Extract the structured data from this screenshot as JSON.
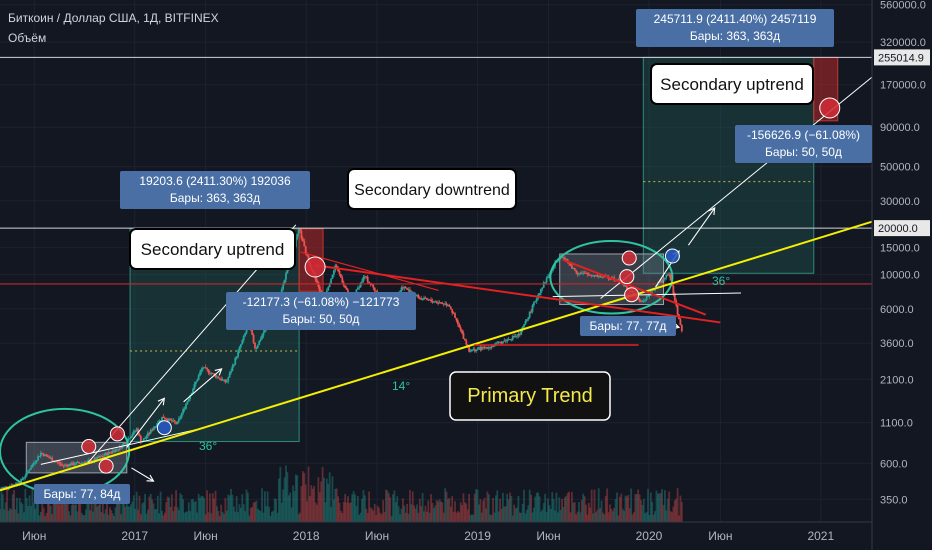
{
  "header": {
    "symbol_line": "Биткоин / Доллар США, 1Д, BITFINEX",
    "volume_label": "Объём"
  },
  "colors": {
    "background": "#131722",
    "grid": "#1e2230",
    "primary_trend": "#f5f000",
    "downtrend": "#e02222",
    "arrow": "#ffffff",
    "ellipse": "#2ec4a0",
    "measure_box": "#1b3a36",
    "label_blue": "#4a6fa5",
    "candle_up": "#26a69a",
    "candle_down": "#ef5350",
    "price_line_red": "#c62828"
  },
  "chart_data": {
    "type": "candlestick",
    "y_scale": "log",
    "ylim": [
      250,
      600000
    ],
    "x_start": "2016-03-20",
    "x_end": "2021-04-20",
    "y_ticks": [
      560000,
      320000,
      170000,
      90000,
      50000,
      30000,
      15000,
      10000,
      6000,
      3600,
      2100,
      1100,
      600,
      350
    ],
    "y_tick_labels": [
      "560000.0",
      "320000.0",
      "170000.0",
      "90000.0",
      "50000.0",
      "30000.0",
      "15000.0",
      "10000.0",
      "6000.0",
      "3600.0",
      "2100.0",
      "1100.0",
      "600.0",
      "350.0"
    ],
    "price_markers": [
      {
        "label": "255014.9",
        "value": 255014.9
      },
      {
        "label": "20000.0",
        "value": 20000
      }
    ],
    "x_ticks": [
      {
        "label": "Июн",
        "date": "2016-06-01"
      },
      {
        "label": "2017",
        "date": "2017-01-01"
      },
      {
        "label": "Июн",
        "date": "2017-06-01"
      },
      {
        "label": "2018",
        "date": "2018-01-01"
      },
      {
        "label": "Июн",
        "date": "2018-06-01"
      },
      {
        "label": "2019",
        "date": "2019-01-01"
      },
      {
        "label": "Июн",
        "date": "2019-06-01"
      },
      {
        "label": "2020",
        "date": "2020-01-01"
      },
      {
        "label": "Июн",
        "date": "2020-06-01"
      },
      {
        "label": "2021",
        "date": "2021-01-01"
      }
    ],
    "price_series": {
      "name": "BTC/USD",
      "points": [
        [
          "2016-03-20",
          410
        ],
        [
          "2016-05-01",
          450
        ],
        [
          "2016-06-15",
          700
        ],
        [
          "2016-08-01",
          580
        ],
        [
          "2016-10-01",
          620
        ],
        [
          "2016-12-01",
          760
        ],
        [
          "2017-01-05",
          1000
        ],
        [
          "2017-01-15",
          820
        ],
        [
          "2017-03-01",
          1200
        ],
        [
          "2017-04-01",
          1080
        ],
        [
          "2017-05-25",
          2500
        ],
        [
          "2017-07-15",
          2000
        ],
        [
          "2017-09-01",
          4800
        ],
        [
          "2017-09-15",
          3300
        ],
        [
          "2017-11-01",
          6500
        ],
        [
          "2017-12-17",
          19800
        ],
        [
          "2018-01-01",
          13500
        ],
        [
          "2018-02-06",
          6900
        ],
        [
          "2018-03-05",
          11500
        ],
        [
          "2018-04-06",
          6700
        ],
        [
          "2018-05-05",
          9800
        ],
        [
          "2018-06-28",
          5900
        ],
        [
          "2018-07-25",
          8400
        ],
        [
          "2018-09-01",
          7000
        ],
        [
          "2018-11-01",
          6400
        ],
        [
          "2018-12-15",
          3200
        ],
        [
          "2019-02-01",
          3450
        ],
        [
          "2019-04-01",
          4100
        ],
        [
          "2019-05-15",
          8000
        ],
        [
          "2019-06-26",
          13500
        ],
        [
          "2019-08-01",
          10300
        ],
        [
          "2019-10-25",
          9400
        ],
        [
          "2019-12-17",
          6600
        ],
        [
          "2020-02-12",
          10400
        ],
        [
          "2020-03-12",
          4100
        ]
      ]
    },
    "volume": {
      "name": "Объём",
      "range": [
        "2016-03-20",
        "2020-03-12"
      ]
    },
    "trendlines": [
      {
        "name": "Primary Trend",
        "from": [
          "2016-03-20",
          400
        ],
        "to": [
          "2021-04-20",
          22000
        ]
      },
      {
        "name": "Secondary downtrend",
        "from": [
          "2018-01-20",
          11500
        ],
        "to": [
          "2020-06-01",
          4900
        ]
      }
    ],
    "measurements": [
      {
        "text": "19203.6 (2411.30%) 192036",
        "sub": "Бары: 363, 363д"
      },
      {
        "text": "245711.9 (2411.40%) 2457119",
        "sub": "Бары: 363, 363д"
      },
      {
        "text": "-12177.3 (−61.08%) −121773",
        "sub": "Бары: 50, 50д"
      },
      {
        "text": "-156626.9 (−61.08%)",
        "sub": "Бары: 50, 50д"
      },
      {
        "text": "Бары: 77, 84д",
        "sub": ""
      },
      {
        "text": "Бары: 77, 77д",
        "sub": ""
      }
    ],
    "annotations": {
      "secondary_uptrend_1": "Secondary uptrend",
      "secondary_uptrend_2": "Secondary uptrend",
      "secondary_downtrend": "Secondary downtrend",
      "primary_trend": "Primary Trend",
      "angle_36_a": "36°",
      "angle_36_b": "36°",
      "angle_14": "14°"
    }
  }
}
